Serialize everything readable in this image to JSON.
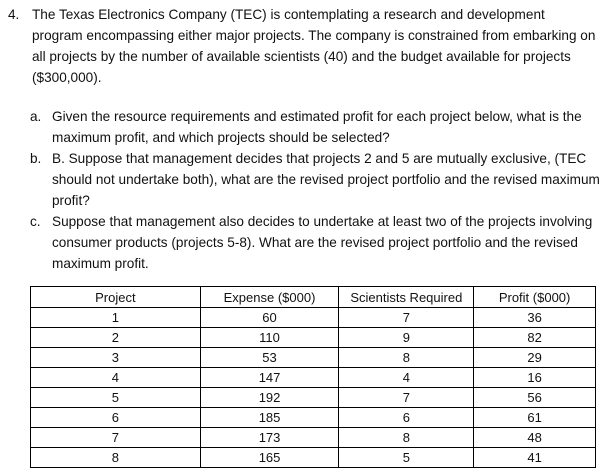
{
  "problem": {
    "number": "4.",
    "intro": "The Texas Electronics Company (TEC) is contemplating a research and development program encompassing either major projects. The company is constrained from embarking on all projects by the number of available scientists (40) and the budget available for projects ($300,000).",
    "parts": [
      {
        "letter": "a.",
        "text": "Given the resource requirements and estimated profit for each project below, what is the maximum profit, and which projects should be selected?"
      },
      {
        "letter": "b.",
        "text": "B. Suppose that management decides that projects 2 and 5 are mutually exclusive, (TEC should not undertake both), what are the revised project portfolio and the revised maximum profit?"
      },
      {
        "letter": "c.",
        "text": "Suppose that management also decides to undertake at least two of the projects involving consumer products (projects 5-8).  What are the revised project portfolio and the revised maximum profit."
      }
    ]
  },
  "table": {
    "headers": [
      "Project",
      "Expense ($000)",
      "Scientists Required",
      "Profit ($000)"
    ],
    "rows": [
      [
        "1",
        "60",
        "7",
        "36"
      ],
      [
        "2",
        "110",
        "9",
        "82"
      ],
      [
        "3",
        "53",
        "8",
        "29"
      ],
      [
        "4",
        "147",
        "4",
        "16"
      ],
      [
        "5",
        "192",
        "7",
        "56"
      ],
      [
        "6",
        "185",
        "6",
        "61"
      ],
      [
        "7",
        "173",
        "8",
        "48"
      ],
      [
        "8",
        "165",
        "5",
        "41"
      ]
    ]
  }
}
